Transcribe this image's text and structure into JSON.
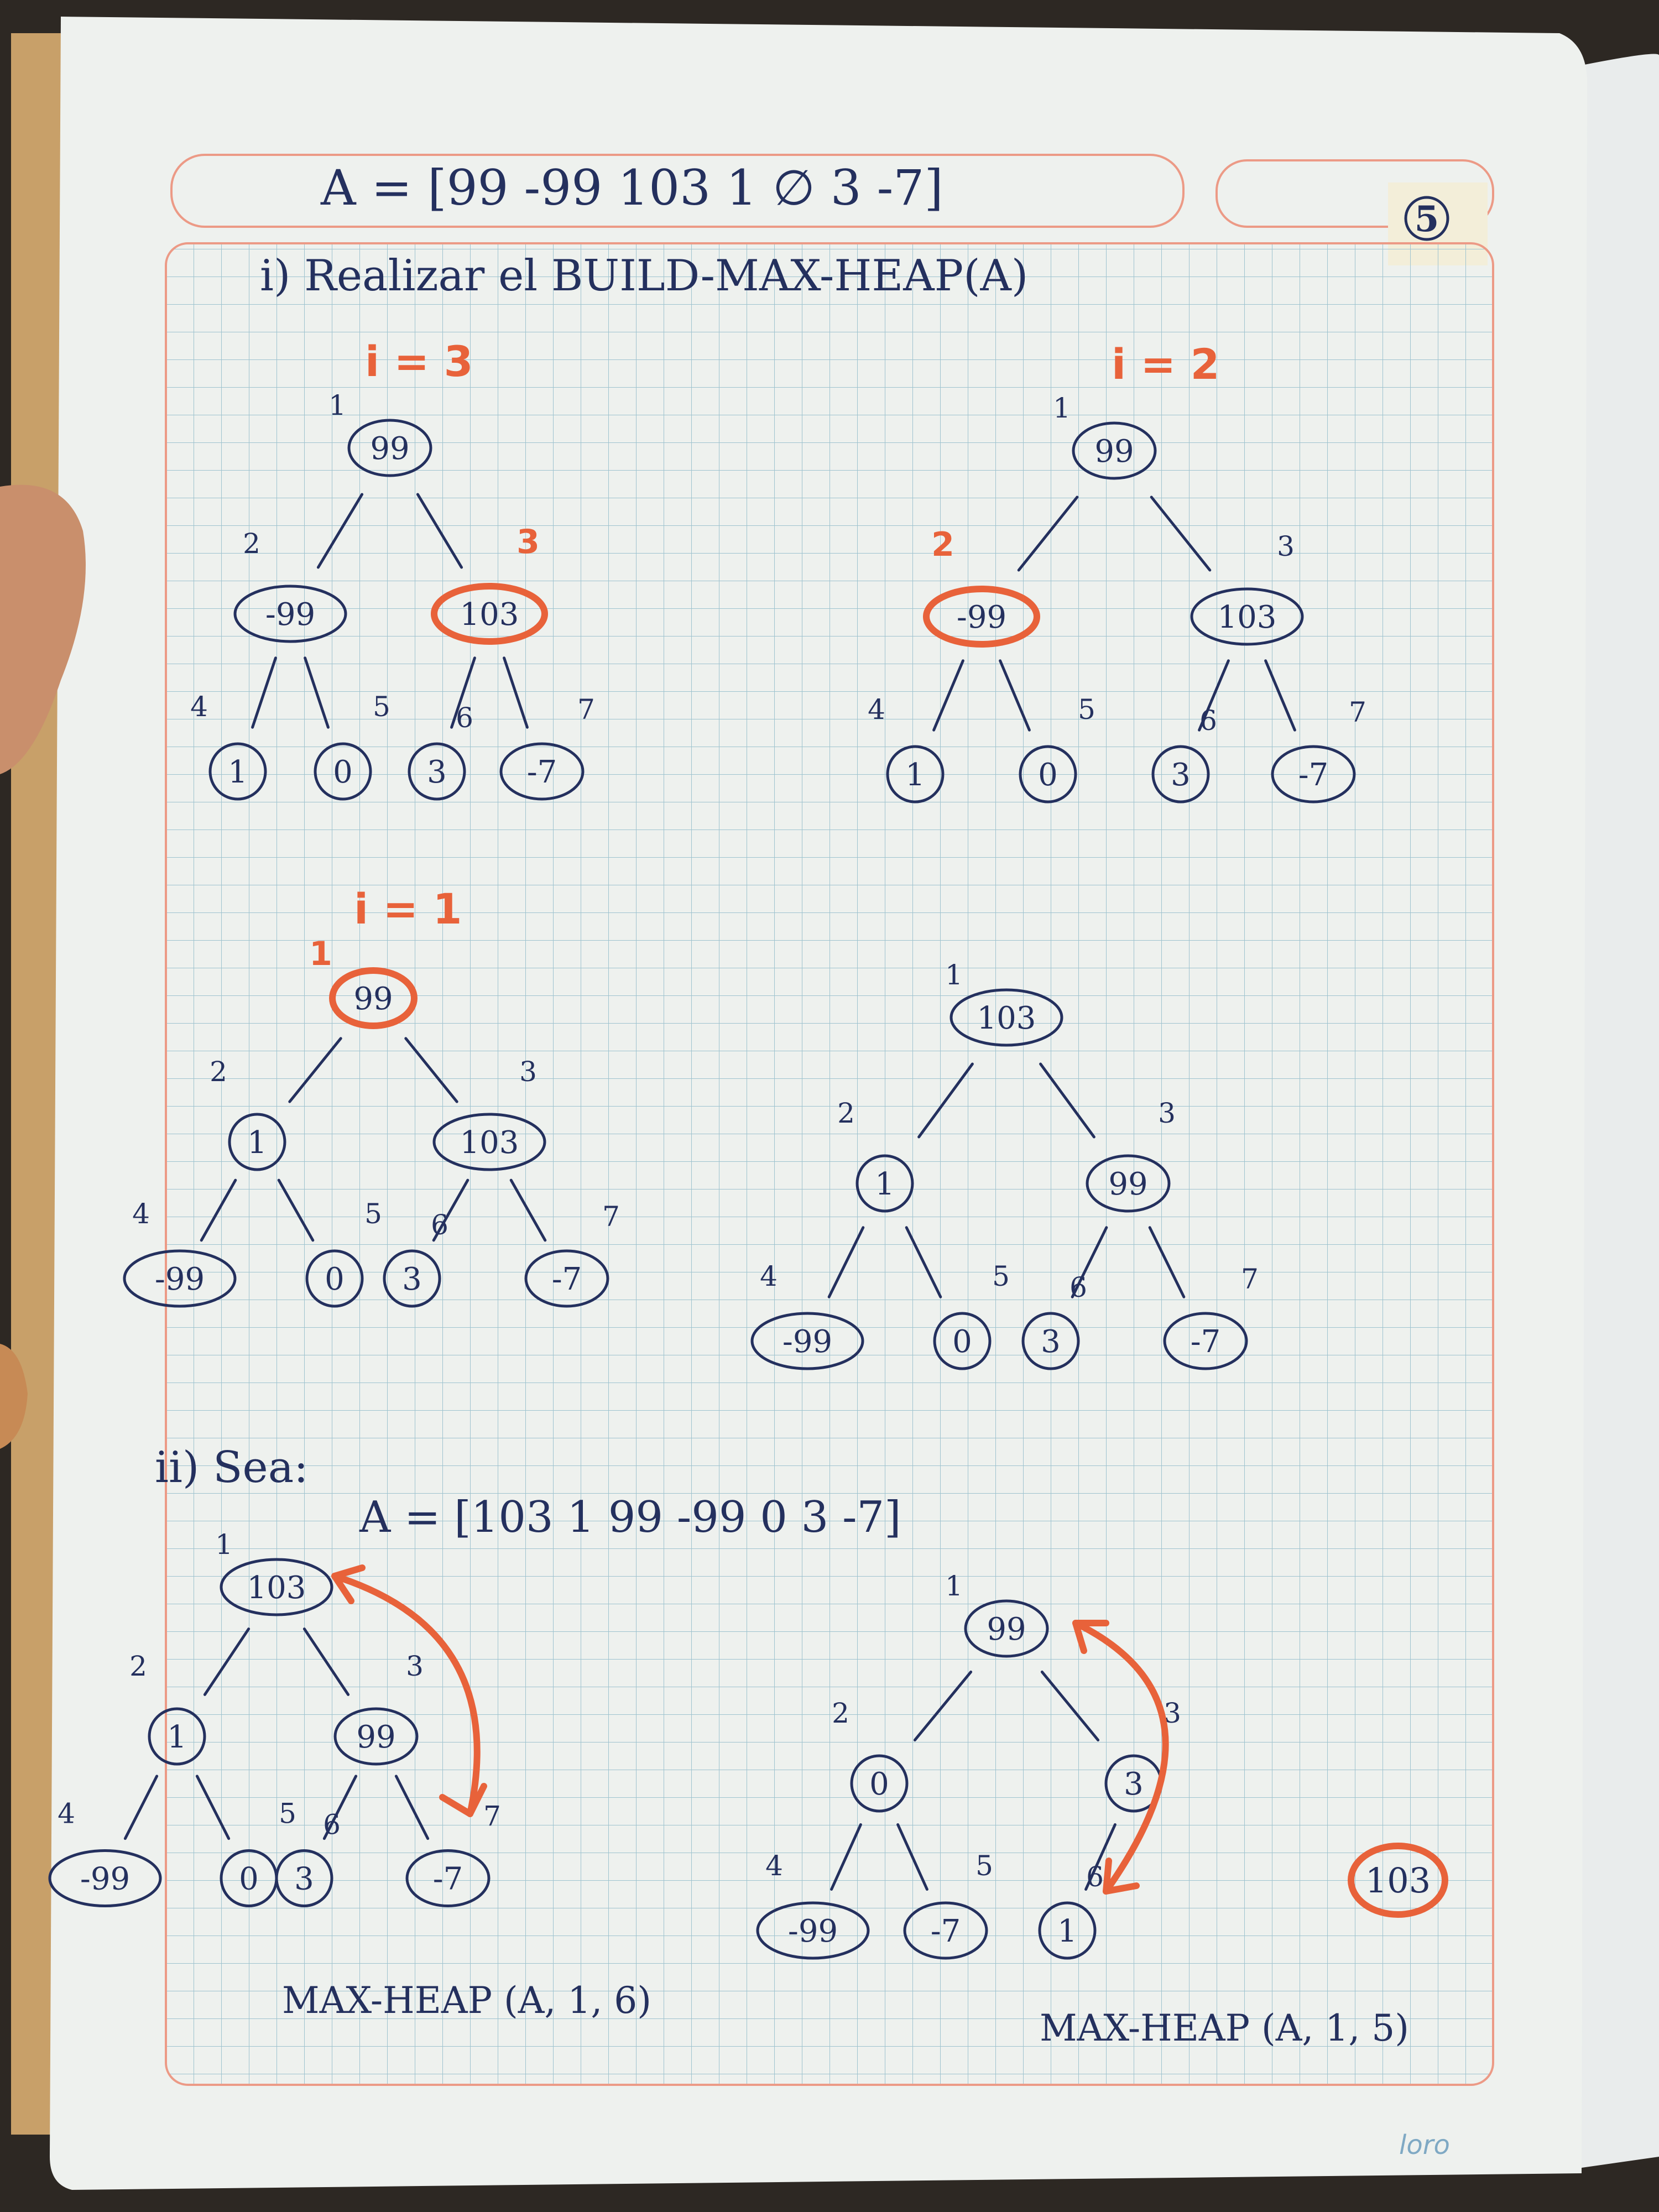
{
  "header": {
    "array_line": "A = [99  -99  103  1  ∅  3  -7]",
    "page_number": "5"
  },
  "part_i": {
    "title": "i) Realizar el BUILD-MAX-HEAP(A)"
  },
  "trees": [
    {
      "id": "tree-i3",
      "step_label": "i = 3",
      "nodes": [
        {
          "idx": "1",
          "val": "99"
        },
        {
          "idx": "2",
          "val": "-99"
        },
        {
          "idx": "3",
          "val": "103"
        },
        {
          "idx": "4",
          "val": "1"
        },
        {
          "idx": "5",
          "val": "0"
        },
        {
          "idx": "6",
          "val": "3"
        },
        {
          "idx": "7",
          "val": "-7"
        }
      ],
      "highlight_node": "3"
    },
    {
      "id": "tree-i2",
      "step_label": "i = 2",
      "nodes": [
        {
          "idx": "1",
          "val": "99"
        },
        {
          "idx": "2",
          "val": "-99"
        },
        {
          "idx": "3",
          "val": "103"
        },
        {
          "idx": "4",
          "val": "1"
        },
        {
          "idx": "5",
          "val": "0"
        },
        {
          "idx": "6",
          "val": "3"
        },
        {
          "idx": "7",
          "val": "-7"
        }
      ],
      "highlight_node": "2"
    },
    {
      "id": "tree-i1",
      "step_label": "i = 1",
      "nodes": [
        {
          "idx": "1",
          "val": "99"
        },
        {
          "idx": "2",
          "val": "1"
        },
        {
          "idx": "3",
          "val": "103"
        },
        {
          "idx": "4",
          "val": "-99"
        },
        {
          "idx": "5",
          "val": "0"
        },
        {
          "idx": "6",
          "val": "3"
        },
        {
          "idx": "7",
          "val": "-7"
        }
      ],
      "highlight_node": "1"
    },
    {
      "id": "tree-final",
      "step_label": "",
      "nodes": [
        {
          "idx": "1",
          "val": "103"
        },
        {
          "idx": "2",
          "val": "1"
        },
        {
          "idx": "3",
          "val": "99"
        },
        {
          "idx": "4",
          "val": "-99"
        },
        {
          "idx": "5",
          "val": "0"
        },
        {
          "idx": "6",
          "val": "3"
        },
        {
          "idx": "7",
          "val": "-7"
        }
      ],
      "highlight_node": ""
    }
  ],
  "part_ii": {
    "title": "ii) Sea:",
    "array_line": "A = [103  1  99  -99  0  3  -7]",
    "tree_left": {
      "nodes": [
        {
          "idx": "1",
          "val": "103"
        },
        {
          "idx": "2",
          "val": "1"
        },
        {
          "idx": "3",
          "val": "99"
        },
        {
          "idx": "4",
          "val": "-99"
        },
        {
          "idx": "5",
          "val": "0"
        },
        {
          "idx": "6",
          "val": "3"
        },
        {
          "idx": "7",
          "val": "-7"
        }
      ],
      "caption": "MAX-HEAP (A, 1, 6)"
    },
    "tree_right": {
      "nodes": [
        {
          "idx": "1",
          "val": "99"
        },
        {
          "idx": "2",
          "val": "0"
        },
        {
          "idx": "3",
          "val": "3"
        },
        {
          "idx": "4",
          "val": "-99"
        },
        {
          "idx": "5",
          "val": "-7"
        },
        {
          "idx": "6",
          "val": "1"
        }
      ],
      "caption": "MAX-HEAP (A, 1, 5)"
    },
    "extracted_value": "103"
  },
  "brand": "loro",
  "colors": {
    "ink": "#24305e",
    "highlight": "#e8623a",
    "grid": "#9ec3cf",
    "paper": "#eef1ee"
  }
}
